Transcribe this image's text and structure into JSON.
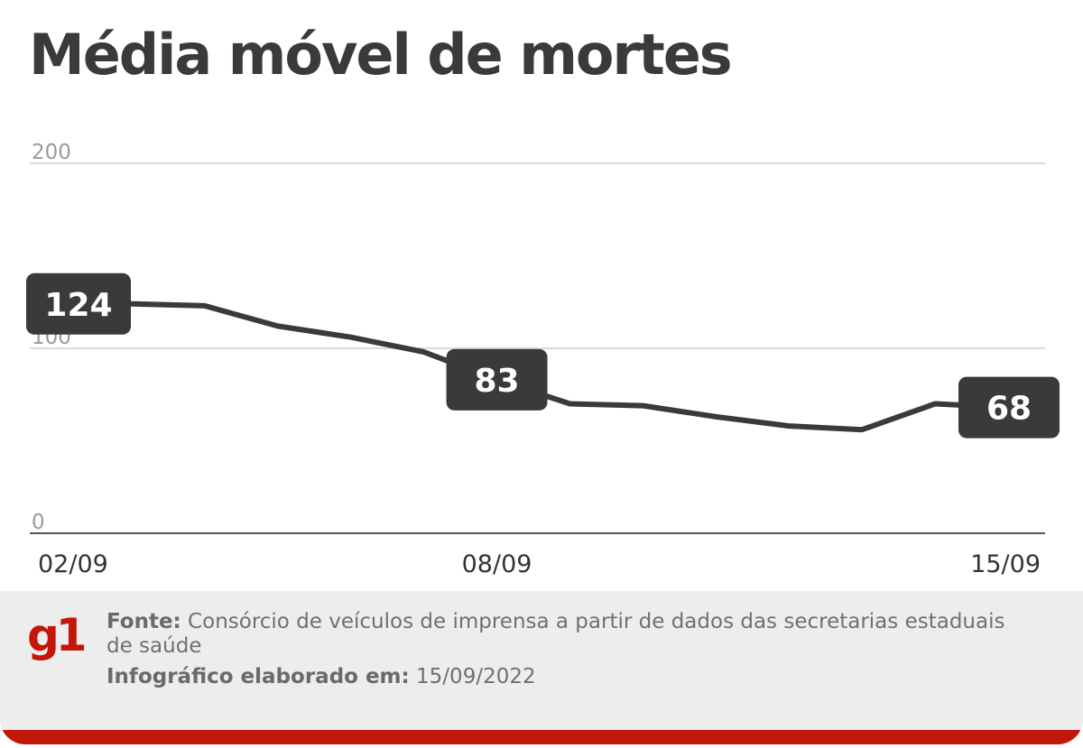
{
  "title": "Média móvel de mortes",
  "chart_data": {
    "type": "line",
    "x": [
      "02/09",
      "03/09",
      "04/09",
      "05/09",
      "06/09",
      "07/09",
      "08/09",
      "09/09",
      "10/09",
      "11/09",
      "12/09",
      "13/09",
      "14/09",
      "15/09"
    ],
    "series": [
      {
        "values": [
          124,
          124,
          123,
          112,
          106,
          98,
          83,
          70,
          69,
          63,
          58,
          56,
          70,
          68
        ]
      }
    ],
    "xticks": [
      "02/09",
      "08/09",
      "15/09"
    ],
    "yticks": [
      0,
      100,
      200
    ],
    "ylim": [
      0,
      200
    ],
    "data_labels": [
      {
        "x": "02/09",
        "text": "124"
      },
      {
        "x": "08/09",
        "text": "83"
      },
      {
        "x": "15/09",
        "text": "68"
      }
    ],
    "grid": true,
    "line_color": "#3a3a3a",
    "label_bg_color": "#3a3a3a",
    "gridline_color": "#cfcfcf",
    "baseline_color": "#555555"
  },
  "footer": {
    "logo": "g1",
    "source_label": "Fonte:",
    "source_text": " Consórcio de veículos de imprensa a partir de dados das secretarias estaduais de saúde",
    "updated_label": "Infográfico elaborado em:",
    "updated_text": " 15/09/2022",
    "accent_color": "#c4170c"
  }
}
